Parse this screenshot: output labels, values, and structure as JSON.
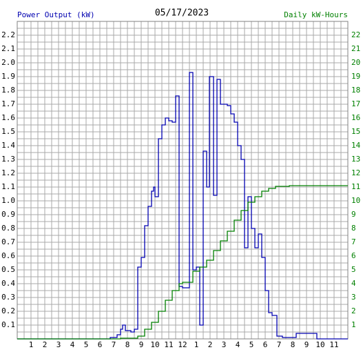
{
  "chart_data": {
    "type": "step-line",
    "title": "05/17/2023",
    "y_label": "Power Output (kW)",
    "y2_label": "Daily kW-Hours",
    "xlim": [
      0,
      24
    ],
    "xticks": [
      1,
      2,
      3,
      4,
      5,
      6,
      7,
      8,
      9,
      10,
      11,
      12,
      {
        "value": 13,
        "label": "1"
      },
      {
        "value": 14,
        "label": "2"
      },
      {
        "value": 15,
        "label": "3"
      },
      {
        "value": 16,
        "label": "4"
      },
      {
        "value": 17,
        "label": "5"
      },
      {
        "value": 18,
        "label": "6"
      },
      {
        "value": 19,
        "label": "7"
      },
      {
        "value": 20,
        "label": "8"
      },
      {
        "value": 21,
        "label": "9"
      },
      {
        "value": 22,
        "label": "10"
      },
      {
        "value": 23,
        "label": "11"
      }
    ],
    "ylim": [
      0,
      2.3
    ],
    "yticks": [
      0.1,
      0.2,
      0.3,
      0.4,
      0.5,
      0.6,
      0.7,
      0.8,
      0.9,
      {
        "value": 1,
        "label": "1.0"
      },
      1.1,
      1.2,
      1.3,
      1.4,
      1.5,
      1.6,
      1.7,
      1.8,
      1.9,
      {
        "value": 2,
        "label": "2.0"
      },
      2.1,
      2.2
    ],
    "y2lim": [
      0,
      23
    ],
    "y2ticks": [
      1,
      2,
      3,
      4,
      5,
      6,
      7,
      8,
      9,
      10,
      11,
      12,
      13,
      14,
      15,
      16,
      17,
      18,
      19,
      20,
      21,
      22
    ],
    "grid": true,
    "minor_grid": true,
    "series": [
      {
        "color": "#0000b0",
        "axis": "y",
        "x": [
          0,
          6.5,
          6.75,
          7.25,
          7.5,
          7.65,
          7.85,
          8.25,
          8.5,
          8.75,
          9.0,
          9.25,
          9.5,
          9.75,
          9.9,
          10.0,
          10.25,
          10.5,
          10.75,
          11.0,
          11.25,
          11.5,
          11.75,
          12.0,
          12.5,
          12.75,
          13.0,
          13.25,
          13.5,
          13.75,
          13.95,
          14.25,
          14.5,
          14.75,
          15.25,
          15.5,
          15.75,
          16.0,
          16.25,
          16.5,
          16.75,
          17.0,
          17.25,
          17.5,
          17.75,
          18.0,
          18.25,
          18.5,
          18.85,
          19.25,
          20.0,
          20.25,
          21.5,
          21.75,
          24
        ],
        "values": [
          0,
          0,
          0.01,
          0.03,
          0.07,
          0.1,
          0.06,
          0.05,
          0.07,
          0.52,
          0.59,
          0.82,
          0.96,
          1.07,
          1.1,
          1.03,
          1.45,
          1.55,
          1.6,
          1.58,
          1.57,
          1.76,
          0.38,
          0.37,
          1.93,
          0.5,
          0.52,
          0.1,
          1.36,
          1.1,
          1.9,
          1.04,
          1.88,
          1.7,
          1.69,
          1.63,
          1.57,
          1.4,
          1.3,
          0.66,
          1.03,
          0.8,
          0.66,
          0.76,
          0.59,
          0.35,
          0.19,
          0.17,
          0.02,
          0.01,
          0.01,
          0.04,
          0.04,
          0,
          0
        ]
      },
      {
        "color": "#008000",
        "axis": "y2",
        "x": [
          0,
          7.5,
          8.75,
          9.25,
          9.75,
          10.25,
          10.75,
          11.25,
          11.75,
          12.0,
          12.75,
          13.25,
          13.75,
          14.25,
          14.75,
          15.25,
          15.75,
          16.25,
          16.75,
          17.25,
          17.75,
          18.25,
          18.75,
          19.75,
          24
        ],
        "values": [
          0,
          0.05,
          0.2,
          0.7,
          1.2,
          2.0,
          2.8,
          3.5,
          4.0,
          4.1,
          4.9,
          5.2,
          5.7,
          6.4,
          7.1,
          7.8,
          8.6,
          9.3,
          9.9,
          10.3,
          10.7,
          10.9,
          11.05,
          11.1,
          11.1
        ]
      }
    ]
  }
}
